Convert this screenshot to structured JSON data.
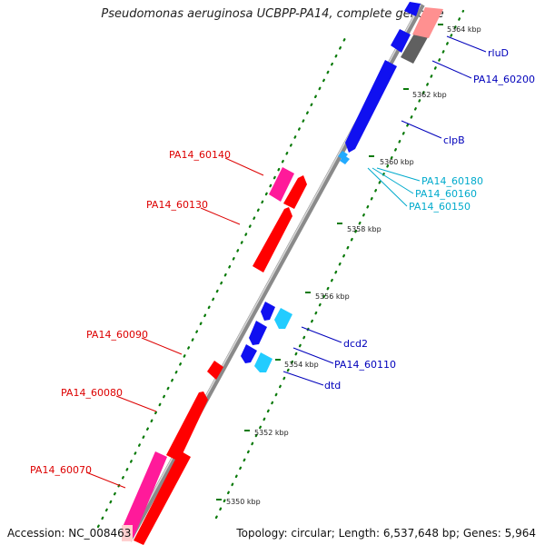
{
  "title": "Pseudomonas aeruginosa UCBPP-PA14, complete genome",
  "footer": {
    "accession": "Accession: NC_008463",
    "summary": "Topology: circular; Length: 6,537,648 bp; Genes: 5,964"
  },
  "colors": {
    "backbone": "#8c8c8c",
    "forward_gene": "#ff0000",
    "forward_pseudo": "#ff1a9a",
    "reverse_gene": "#1010f0",
    "reverse_light": "#22ccff",
    "tick": "#0a7a0a",
    "label_red": "#dd0000",
    "label_blue": "#0000bb",
    "label_cyan": "#00aacc"
  },
  "ticks": [
    "5350 kbp",
    "5352 kbp",
    "5354 kbp",
    "5356 kbp",
    "5358 kbp",
    "5360 kbp",
    "5362 kbp",
    "5364 kbp"
  ],
  "gene_labels": [
    {
      "id": "PA14_60070",
      "color": "red"
    },
    {
      "id": "PA14_60080",
      "color": "red"
    },
    {
      "id": "PA14_60090",
      "color": "red"
    },
    {
      "id": "PA14_60130",
      "color": "red"
    },
    {
      "id": "PA14_60140",
      "color": "red"
    },
    {
      "id": "dtd",
      "color": "blue"
    },
    {
      "id": "PA14_60110",
      "color": "blue"
    },
    {
      "id": "dcd2",
      "color": "blue"
    },
    {
      "id": "PA14_60150",
      "color": "cyan"
    },
    {
      "id": "PA14_60160",
      "color": "cyan"
    },
    {
      "id": "PA14_60180",
      "color": "cyan"
    },
    {
      "id": "clpB",
      "color": "blue"
    },
    {
      "id": "PA14_60200",
      "color": "blue"
    },
    {
      "id": "rluD",
      "color": "blue"
    }
  ]
}
